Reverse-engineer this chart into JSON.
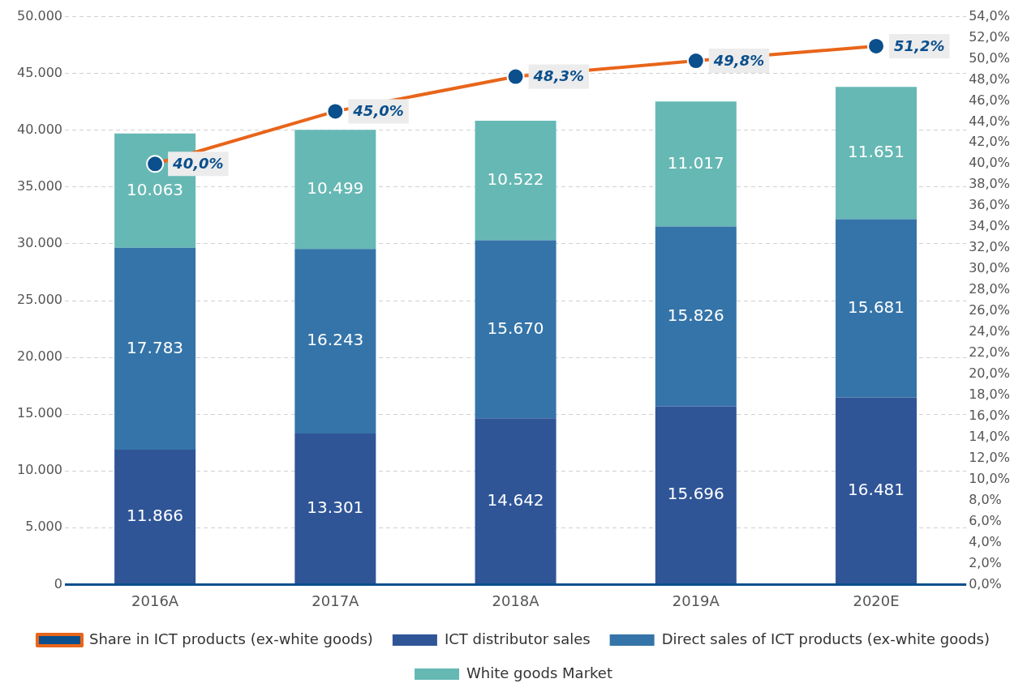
{
  "chart_data": {
    "type": "bar",
    "stacked": true,
    "categories": [
      "2016A",
      "2017A",
      "2018A",
      "2019A",
      "2020E"
    ],
    "series": [
      {
        "name": "ICT distributor sales",
        "color": "#2f5597",
        "values": [
          11866,
          13301,
          14642,
          15696,
          16481
        ],
        "value_labels": [
          "11.866",
          "13.301",
          "14.642",
          "15.696",
          "16.481"
        ]
      },
      {
        "name": "Direct sales of ICT products (ex-white goods)",
        "color": "#3574a8",
        "values": [
          17783,
          16243,
          15670,
          15826,
          15681
        ],
        "value_labels": [
          "17.783",
          "16.243",
          "15.670",
          "15.826",
          "15.681"
        ]
      },
      {
        "name": "White goods Market",
        "color": "#66b8b4",
        "values": [
          10063,
          10499,
          10522,
          11017,
          11651
        ],
        "value_labels": [
          "10.063",
          "10.499",
          "10.522",
          "11.017",
          "11.651"
        ]
      },
      {
        "name": "Share in ICT products (ex-white goods)",
        "type": "line",
        "axis": "y2",
        "color": "#e8651a",
        "marker": "circle",
        "line_style": "solid",
        "values": [
          40.0,
          45.0,
          48.3,
          49.8,
          51.2
        ],
        "value_labels": [
          "40,0%",
          "45,0%",
          "48,3%",
          "49,8%",
          "51,2%"
        ]
      }
    ],
    "ylim": [
      0,
      50000
    ],
    "yticks": [
      {
        "value": 0,
        "label": "0"
      },
      {
        "value": 5000,
        "label": "5.000"
      },
      {
        "value": 10000,
        "label": "10.000"
      },
      {
        "value": 15000,
        "label": "15.000"
      },
      {
        "value": 20000,
        "label": "20.000"
      },
      {
        "value": 25000,
        "label": "25.000"
      },
      {
        "value": 30000,
        "label": "30.000"
      },
      {
        "value": 35000,
        "label": "35.000"
      },
      {
        "value": 40000,
        "label": "40.000"
      },
      {
        "value": 45000,
        "label": "45.000"
      },
      {
        "value": 50000,
        "label": "50.000"
      }
    ],
    "y2lim": [
      0,
      54
    ],
    "y2ticks": [
      {
        "value": 0,
        "label": "0,0%"
      },
      {
        "value": 2,
        "label": "2,0%"
      },
      {
        "value": 4,
        "label": "4,0%"
      },
      {
        "value": 6,
        "label": "6,0%"
      },
      {
        "value": 8,
        "label": "8,0%"
      },
      {
        "value": 10,
        "label": "10,0%"
      },
      {
        "value": 12,
        "label": "12,0%"
      },
      {
        "value": 14,
        "label": "14,0%"
      },
      {
        "value": 16,
        "label": "16,0%"
      },
      {
        "value": 18,
        "label": "18,0%"
      },
      {
        "value": 20,
        "label": "20,0%"
      },
      {
        "value": 22,
        "label": "22,0%"
      },
      {
        "value": 24,
        "label": "24,0%"
      },
      {
        "value": 26,
        "label": "26,0%"
      },
      {
        "value": 28,
        "label": "28,0%"
      },
      {
        "value": 30,
        "label": "30,0%"
      },
      {
        "value": 32,
        "label": "32,0%"
      },
      {
        "value": 34,
        "label": "34,0%"
      },
      {
        "value": 36,
        "label": "36,0%"
      },
      {
        "value": 38,
        "label": "38,0%"
      },
      {
        "value": 40,
        "label": "40,0%"
      },
      {
        "value": 42,
        "label": "42,0%"
      },
      {
        "value": 44,
        "label": "44,0%"
      },
      {
        "value": 46,
        "label": "46,0%"
      },
      {
        "value": 48,
        "label": "48,0%"
      },
      {
        "value": 50,
        "label": "50,0%"
      },
      {
        "value": 52,
        "label": "52,0%"
      },
      {
        "value": 54,
        "label": "54,0%"
      }
    ],
    "grid": "y",
    "legend": "bottom"
  }
}
